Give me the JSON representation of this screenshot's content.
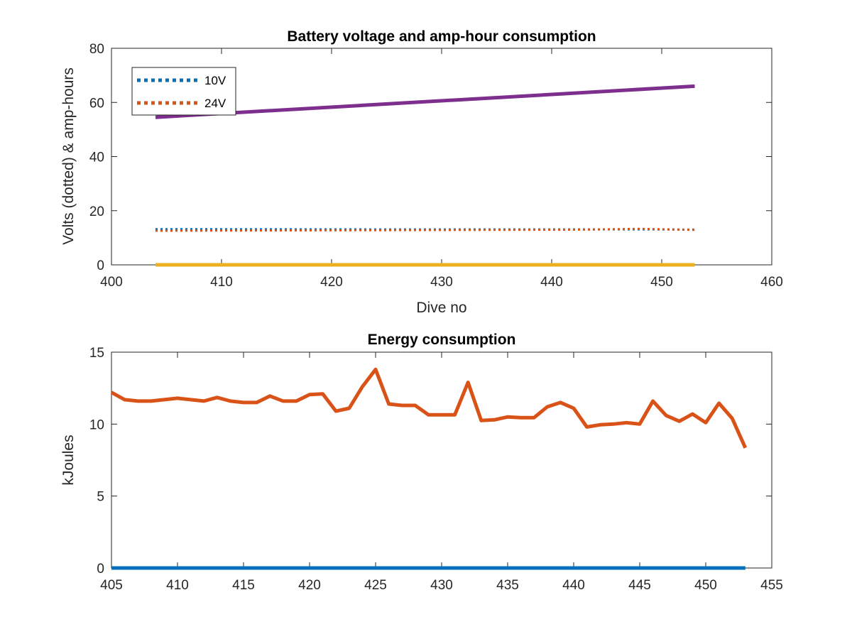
{
  "chart_data": [
    {
      "type": "line",
      "title": "Battery voltage and amp-hour consumption",
      "xlabel": "Dive no",
      "ylabel": "Volts (dotted) & amp-hours",
      "xlim": [
        400,
        460
      ],
      "ylim": [
        0,
        80
      ],
      "xticks": [
        "400",
        "410",
        "420",
        "430",
        "440",
        "450",
        "460"
      ],
      "yticks": [
        "0",
        "20",
        "40",
        "60",
        "80"
      ],
      "legend_position": "top-left",
      "series": [
        {
          "name": "10V",
          "style": "dotted",
          "color": "#0072BD",
          "x": [
            404,
            425,
            448,
            453
          ],
          "y": [
            13.2,
            13.1,
            13.1,
            13.0
          ]
        },
        {
          "name": "24V",
          "style": "dotted",
          "color": "#D95319",
          "x": [
            404,
            425,
            443,
            448,
            453
          ],
          "y": [
            12.6,
            12.8,
            13.0,
            13.3,
            12.9
          ]
        },
        {
          "name": "",
          "style": "solid",
          "color": "#EDB120",
          "x": [
            404,
            453
          ],
          "y": [
            0,
            0
          ]
        },
        {
          "name": "",
          "style": "solid",
          "color": "#7E2F8E",
          "x": [
            404,
            453
          ],
          "y": [
            54.5,
            66.0
          ]
        }
      ]
    },
    {
      "type": "line",
      "title": "Energy consumption",
      "xlabel": "",
      "ylabel": "kJoules",
      "xlim": [
        405,
        455
      ],
      "ylim": [
        0,
        15
      ],
      "xticks": [
        "405",
        "410",
        "415",
        "420",
        "425",
        "430",
        "435",
        "440",
        "445",
        "450",
        "455"
      ],
      "yticks": [
        "0",
        "5",
        "10",
        "15"
      ],
      "series": [
        {
          "name": "",
          "color": "#0072BD",
          "x": [
            405,
            453
          ],
          "y": [
            0,
            0
          ]
        },
        {
          "name": "",
          "color": "#D95319",
          "x": [
            405,
            406,
            407,
            408,
            409,
            410,
            411,
            412,
            413,
            414,
            415,
            416,
            417,
            418,
            419,
            420,
            421,
            422,
            423,
            424,
            425,
            426,
            427,
            428,
            429,
            430,
            431,
            432,
            433,
            434,
            435,
            436,
            437,
            438,
            439,
            440,
            441,
            442,
            443,
            444,
            445,
            446,
            447,
            448,
            449,
            450,
            451,
            452,
            453
          ],
          "y": [
            12.2,
            11.7,
            11.6,
            11.6,
            11.7,
            11.8,
            11.7,
            11.6,
            11.85,
            11.6,
            11.5,
            11.5,
            11.95,
            11.6,
            11.6,
            12.05,
            12.1,
            10.9,
            11.1,
            12.6,
            13.8,
            11.4,
            11.3,
            11.3,
            10.65,
            10.65,
            10.65,
            12.9,
            10.25,
            10.3,
            10.5,
            10.45,
            10.45,
            11.2,
            11.5,
            11.1,
            9.8,
            9.95,
            10.0,
            10.1,
            10.0,
            11.6,
            10.6,
            10.2,
            10.7,
            10.1,
            11.45,
            10.4,
            8.35
          ]
        }
      ]
    }
  ]
}
